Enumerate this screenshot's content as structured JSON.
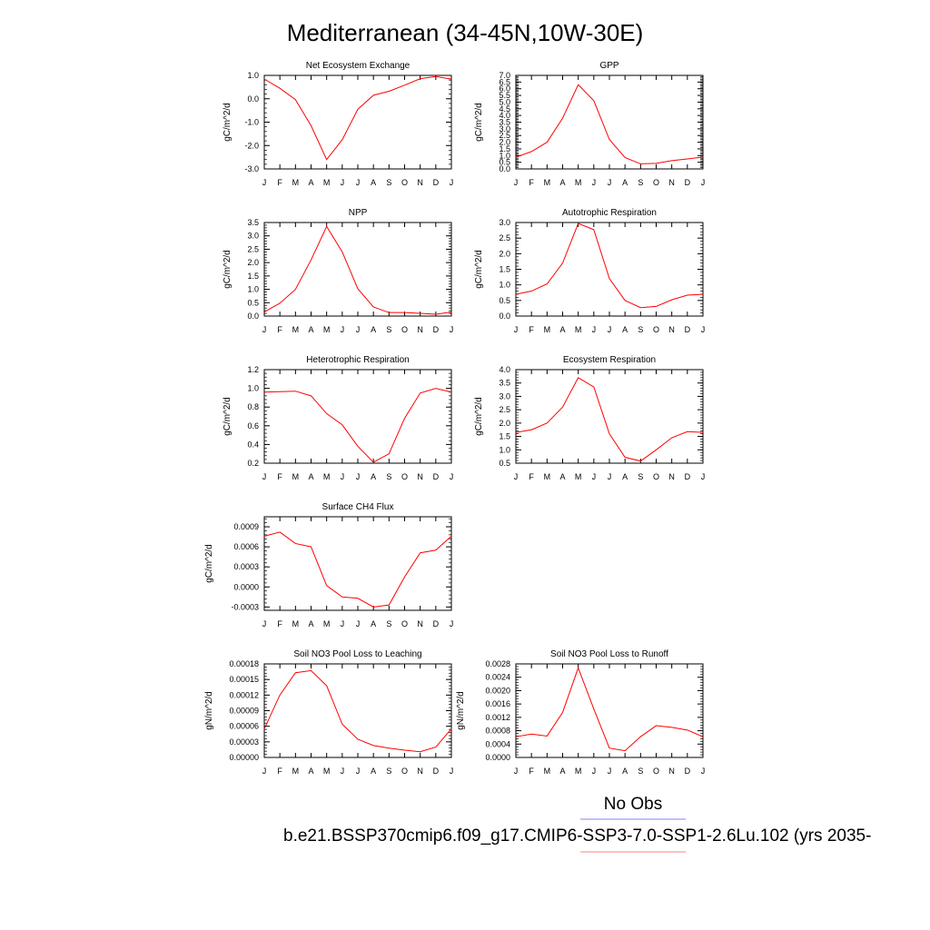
{
  "figure": {
    "title": "Mediterranean (34-45N,10W-30E)",
    "legend_label": "No Obs",
    "legend_colors": [
      "#8080ff",
      "#ff8080"
    ],
    "caption": "b.e21.BSSP370cmip6.f09_g17.CMIP6-SSP3-7.0-SSP1-2.6Lu.102 (yrs 2035-"
  },
  "months": [
    "J",
    "F",
    "M",
    "A",
    "M",
    "J",
    "J",
    "A",
    "S",
    "O",
    "N",
    "D",
    "J"
  ],
  "line_color": "#ff0000",
  "chart_data": [
    {
      "type": "line",
      "title": "Net Ecosystem Exchange",
      "ylabel": "gC/m^2/d",
      "ylim": [
        -3.0,
        1.0
      ],
      "yticks": [
        "-3.0",
        "-2.0",
        "-1.0",
        "0.0",
        "1.0"
      ],
      "x": [
        "J",
        "F",
        "M",
        "A",
        "M",
        "J",
        "J",
        "A",
        "S",
        "O",
        "N",
        "D",
        "J"
      ],
      "series": [
        {
          "values": [
            0.84,
            0.45,
            -0.04,
            -1.15,
            -2.6,
            -1.75,
            -0.45,
            0.15,
            0.32,
            0.58,
            0.86,
            0.95,
            0.84
          ]
        }
      ]
    },
    {
      "type": "line",
      "title": "GPP",
      "ylabel": "gC/m^2/d",
      "ylim": [
        0.0,
        7.0
      ],
      "yticks": [
        "0.0",
        "0.5",
        "1.0",
        "1.5",
        "2.0",
        "2.5",
        "3.0",
        "3.5",
        "4.0",
        "4.5",
        "5.0",
        "5.5",
        "6.0",
        "6.5",
        "7.0"
      ],
      "x": [
        "J",
        "F",
        "M",
        "A",
        "M",
        "J",
        "J",
        "A",
        "S",
        "O",
        "N",
        "D",
        "J"
      ],
      "series": [
        {
          "values": [
            0.88,
            1.3,
            2.0,
            3.8,
            6.3,
            5.1,
            2.2,
            0.85,
            0.38,
            0.42,
            0.62,
            0.75,
            0.88
          ]
        }
      ]
    },
    {
      "type": "line",
      "title": "NPP",
      "ylabel": "gC/m^2/d",
      "ylim": [
        0.0,
        3.5
      ],
      "yticks": [
        "0.0",
        "0.5",
        "1.0",
        "1.5",
        "2.0",
        "2.5",
        "3.0",
        "3.5"
      ],
      "x": [
        "J",
        "F",
        "M",
        "A",
        "M",
        "J",
        "J",
        "A",
        "S",
        "O",
        "N",
        "D",
        "J"
      ],
      "series": [
        {
          "values": [
            0.15,
            0.48,
            1.0,
            2.1,
            3.35,
            2.4,
            1.02,
            0.34,
            0.13,
            0.13,
            0.1,
            0.07,
            0.15
          ]
        }
      ]
    },
    {
      "type": "line",
      "title": "Autotrophic Respiration",
      "ylabel": "gC/m^2/d",
      "ylim": [
        0.0,
        3.0
      ],
      "yticks": [
        "0.0",
        "0.5",
        "1.0",
        "1.5",
        "2.0",
        "2.5",
        "3.0"
      ],
      "x": [
        "J",
        "F",
        "M",
        "A",
        "M",
        "J",
        "J",
        "A",
        "S",
        "O",
        "N",
        "D",
        "J"
      ],
      "series": [
        {
          "values": [
            0.7,
            0.8,
            1.03,
            1.7,
            2.97,
            2.77,
            1.2,
            0.5,
            0.27,
            0.31,
            0.52,
            0.67,
            0.7
          ]
        }
      ]
    },
    {
      "type": "line",
      "title": "Heterotrophic Respiration",
      "ylabel": "gC/m^2/d",
      "ylim": [
        0.2,
        1.2
      ],
      "yticks": [
        "0.2",
        "0.4",
        "0.6",
        "0.8",
        "1.0",
        "1.2"
      ],
      "x": [
        "J",
        "F",
        "M",
        "A",
        "M",
        "J",
        "J",
        "A",
        "S",
        "O",
        "N",
        "D",
        "J"
      ],
      "series": [
        {
          "values": [
            0.96,
            0.965,
            0.97,
            0.92,
            0.73,
            0.61,
            0.38,
            0.21,
            0.3,
            0.68,
            0.95,
            1.0,
            0.96
          ]
        }
      ]
    },
    {
      "type": "line",
      "title": "Ecosystem Respiration",
      "ylabel": "gC/m^2/d",
      "ylim": [
        0.5,
        4.0
      ],
      "yticks": [
        "0.5",
        "1.0",
        "1.5",
        "2.0",
        "2.5",
        "3.0",
        "3.5",
        "4.0"
      ],
      "x": [
        "J",
        "F",
        "M",
        "A",
        "M",
        "J",
        "J",
        "A",
        "S",
        "O",
        "N",
        "D",
        "J"
      ],
      "series": [
        {
          "values": [
            1.65,
            1.75,
            2.0,
            2.6,
            3.7,
            3.35,
            1.6,
            0.72,
            0.58,
            1.0,
            1.45,
            1.68,
            1.65
          ]
        }
      ]
    },
    {
      "type": "line",
      "title": "Surface CH4 Flux",
      "ylabel": "gC/m^2/d",
      "ylim": [
        -0.00035,
        0.00105
      ],
      "yticks": [
        "-0.0003",
        "0.0000",
        "0.0003",
        "0.0006",
        "0.0009"
      ],
      "x": [
        "J",
        "F",
        "M",
        "A",
        "M",
        "J",
        "J",
        "A",
        "S",
        "O",
        "N",
        "D",
        "J"
      ],
      "series": [
        {
          "values": [
            0.00076,
            0.00082,
            0.00065,
            0.0006,
            2e-05,
            -0.00015,
            -0.00017,
            -0.0003,
            -0.00027,
            0.00015,
            0.00051,
            0.00055,
            0.00076
          ]
        }
      ]
    },
    null,
    {
      "type": "line",
      "title": "Soil NO3 Pool Loss to Leaching",
      "ylabel": "gN/m^2/d",
      "ylim": [
        0.0,
        0.00018
      ],
      "yticks": [
        "0.00000",
        "0.00003",
        "0.00006",
        "0.00009",
        "0.00012",
        "0.00015",
        "0.00018"
      ],
      "x": [
        "J",
        "F",
        "M",
        "A",
        "M",
        "J",
        "J",
        "A",
        "S",
        "O",
        "N",
        "D",
        "J"
      ],
      "series": [
        {
          "values": [
            5.5e-05,
            0.00012,
            0.000163,
            0.000167,
            0.000138,
            6.4e-05,
            3.5e-05,
            2.3e-05,
            1.8e-05,
            1.4e-05,
            1.1e-05,
            2e-05,
            5.5e-05
          ]
        }
      ]
    },
    {
      "type": "line",
      "title": "Soil NO3 Pool Loss to Runoff",
      "ylabel": "gN/m^2/d",
      "ylim": [
        0.0,
        0.0028
      ],
      "yticks": [
        "0.0000",
        "0.0004",
        "0.0008",
        "0.0012",
        "0.0016",
        "0.0020",
        "0.0024",
        "0.0028"
      ],
      "x": [
        "J",
        "F",
        "M",
        "A",
        "M",
        "J",
        "J",
        "A",
        "S",
        "O",
        "N",
        "D",
        "J"
      ],
      "series": [
        {
          "values": [
            0.00062,
            0.0007,
            0.00064,
            0.00135,
            0.00268,
            0.00145,
            0.00028,
            0.0002,
            0.00062,
            0.00095,
            0.0009,
            0.00082,
            0.00062
          ]
        }
      ]
    }
  ]
}
